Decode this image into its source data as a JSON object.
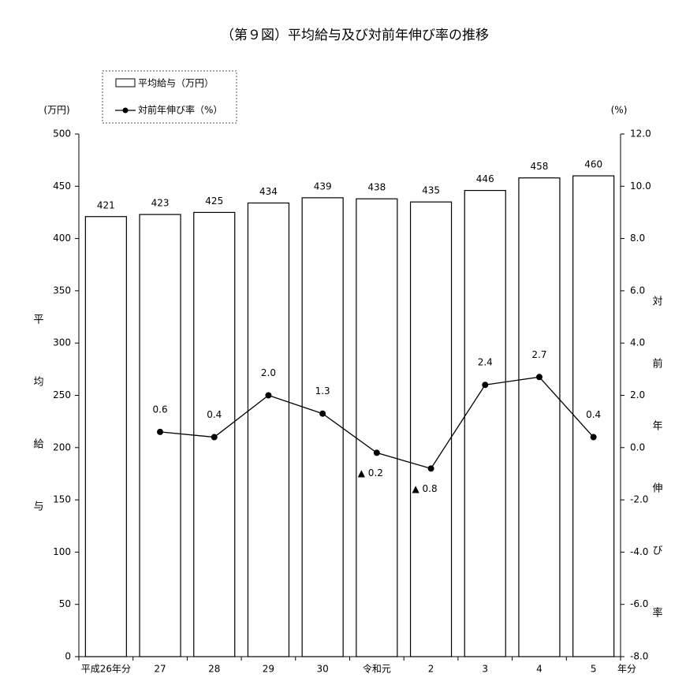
{
  "chart_data": {
    "type": "bar-line",
    "title": "（第９図）平均給与及び対前年伸び率の推移",
    "y_unit": "(万円)",
    "y2_unit": "(%)",
    "y_label": "平均給与",
    "y2_label": "対前年伸び率",
    "x_unit": "年分",
    "categories": [
      "平成26年分",
      "27",
      "28",
      "29",
      "30",
      "令和元",
      "2",
      "3",
      "4",
      "5"
    ],
    "series": [
      {
        "name": "平均給与（万円）",
        "type": "bar",
        "color": "#ffffff",
        "values": [
          421,
          423,
          425,
          434,
          439,
          438,
          435,
          446,
          458,
          460
        ]
      },
      {
        "name": "対前年伸び率（%）",
        "type": "line",
        "axis": "y2",
        "color": "#000000",
        "values": [
          null,
          0.6,
          0.4,
          2.0,
          1.3,
          -0.2,
          -0.8,
          2.4,
          2.7,
          0.4
        ],
        "value_labels": [
          null,
          "0.6",
          "0.4",
          "2.0",
          "1.3",
          "▲ 0.2",
          "▲ 0.8",
          "2.4",
          "2.7",
          "0.4"
        ]
      }
    ],
    "ylim": [
      0,
      500
    ],
    "yticks": [
      0,
      50,
      100,
      150,
      200,
      250,
      300,
      350,
      400,
      450,
      500
    ],
    "y2lim": [
      -8,
      12
    ],
    "y2ticks": [
      {
        "value": -8,
        "label": "-8.0"
      },
      {
        "value": -6,
        "label": "-6.0"
      },
      {
        "value": -4,
        "label": "-4.0"
      },
      {
        "value": -2,
        "label": "-2.0"
      },
      {
        "value": 0,
        "label": "0.0"
      },
      {
        "value": 2,
        "label": "2.0"
      },
      {
        "value": 4,
        "label": "4.0"
      },
      {
        "value": 6,
        "label": "6.0"
      },
      {
        "value": 8,
        "label": "8.0"
      },
      {
        "value": 10,
        "label": "10.0"
      },
      {
        "value": 12,
        "label": "12.0"
      }
    ],
    "grid": false
  }
}
